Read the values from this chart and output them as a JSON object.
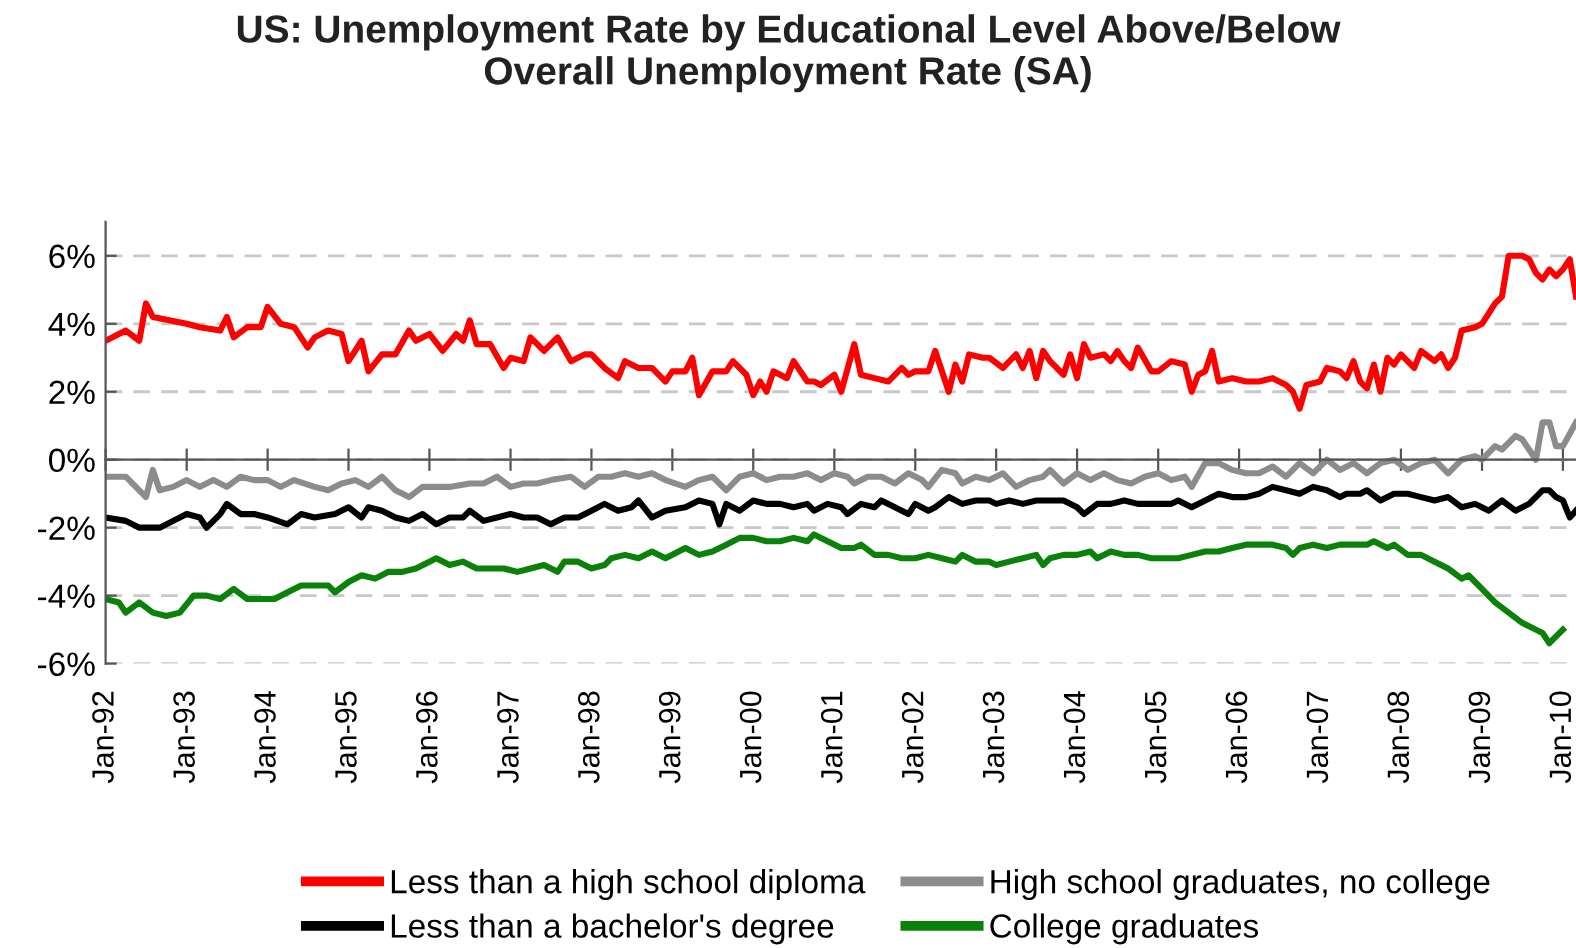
{
  "chart_data": {
    "type": "line",
    "title": "US: Unemployment Rate by Educational Level Above/Below\nOverall Unemployment Rate (SA)",
    "xlim": [
      "1992-01",
      "2010-03"
    ],
    "xticks": [
      {
        "value": "1992-01",
        "label": "Jan-92"
      },
      {
        "value": "1993-01",
        "label": "Jan-93"
      },
      {
        "value": "1994-01",
        "label": "Jan-94"
      },
      {
        "value": "1995-01",
        "label": "Jan-95"
      },
      {
        "value": "1996-01",
        "label": "Jan-96"
      },
      {
        "value": "1997-01",
        "label": "Jan-97"
      },
      {
        "value": "1998-01",
        "label": "Jan-98"
      },
      {
        "value": "1999-01",
        "label": "Jan-99"
      },
      {
        "value": "2000-01",
        "label": "Jan-00"
      },
      {
        "value": "2001-01",
        "label": "Jan-01"
      },
      {
        "value": "2002-01",
        "label": "Jan-02"
      },
      {
        "value": "2003-01",
        "label": "Jan-03"
      },
      {
        "value": "2004-01",
        "label": "Jan-04"
      },
      {
        "value": "2005-01",
        "label": "Jan-05"
      },
      {
        "value": "2006-01",
        "label": "Jan-06"
      },
      {
        "value": "2007-01",
        "label": "Jan-07"
      },
      {
        "value": "2008-01",
        "label": "Jan-08"
      },
      {
        "value": "2009-01",
        "label": "Jan-09"
      },
      {
        "value": "2010-01",
        "label": "Jan-10"
      }
    ],
    "ylim": [
      -6,
      7
    ],
    "yticks": [
      {
        "value": -6,
        "label": "-6%"
      },
      {
        "value": -4,
        "label": "-4%"
      },
      {
        "value": -2,
        "label": "-2%"
      },
      {
        "value": 0,
        "label": "0%"
      },
      {
        "value": 2,
        "label": "2%"
      },
      {
        "value": 4,
        "label": "4%"
      },
      {
        "value": 6,
        "label": "6%"
      }
    ],
    "grid": "y",
    "legend": "bottom",
    "marker": "none",
    "line_style": "solid",
    "series": [
      {
        "name": "Less than a high school diploma",
        "color": "#ff0000",
        "x": [
          "1992-01",
          "1992-04",
          "1992-06",
          "1992-07",
          "1992-08",
          "1993-01",
          "1993-03",
          "1993-06",
          "1993-07",
          "1993-08",
          "1993-10",
          "1993-12",
          "1994-01",
          "1994-03",
          "1994-05",
          "1994-07",
          "1994-08",
          "1994-10",
          "1994-12",
          "1995-01",
          "1995-03",
          "1995-04",
          "1995-06",
          "1995-08",
          "1995-10",
          "1995-11",
          "1996-01",
          "1996-03",
          "1996-05",
          "1996-06",
          "1996-07",
          "1996-08",
          "1996-10",
          "1996-12",
          "1997-01",
          "1997-03",
          "1997-04",
          "1997-06",
          "1997-08",
          "1997-10",
          "1997-12",
          "1998-01",
          "1998-03",
          "1998-05",
          "1998-06",
          "1998-08",
          "1998-10",
          "1998-12",
          "1999-01",
          "1999-03",
          "1999-04",
          "1999-05",
          "1999-07",
          "1999-09",
          "1999-10",
          "1999-12",
          "2000-01",
          "2000-02",
          "2000-03",
          "2000-04",
          "2000-06",
          "2000-07",
          "2000-09",
          "2000-10",
          "2000-11",
          "2001-01",
          "2001-02",
          "2001-04",
          "2001-05",
          "2001-07",
          "2001-09",
          "2001-11",
          "2001-12",
          "2002-01",
          "2002-03",
          "2002-04",
          "2002-06",
          "2002-07",
          "2002-08",
          "2002-09",
          "2002-11",
          "2002-12",
          "2003-02",
          "2003-04",
          "2003-05",
          "2003-06",
          "2003-07",
          "2003-08",
          "2003-09",
          "2003-11",
          "2003-12",
          "2004-01",
          "2004-02",
          "2004-03",
          "2004-05",
          "2004-06",
          "2004-07",
          "2004-08",
          "2004-09",
          "2004-10",
          "2004-12",
          "2005-01",
          "2005-03",
          "2005-05",
          "2005-06",
          "2005-07",
          "2005-08",
          "2005-09",
          "2005-10",
          "2005-12",
          "2006-02",
          "2006-04",
          "2006-06",
          "2006-08",
          "2006-09",
          "2006-10",
          "2006-11",
          "2007-01",
          "2007-02",
          "2007-04",
          "2007-05",
          "2007-06",
          "2007-07",
          "2007-08",
          "2007-09",
          "2007-10",
          "2007-11",
          "2007-12",
          "2008-01",
          "2008-03",
          "2008-04",
          "2008-06",
          "2008-07",
          "2008-08",
          "2008-09",
          "2008-10",
          "2008-12",
          "2009-01",
          "2009-03",
          "2009-04",
          "2009-05",
          "2009-07",
          "2009-08",
          "2009-09",
          "2009-10",
          "2009-11",
          "2009-12",
          "2010-01",
          "2010-02",
          "2010-03"
        ],
        "values": [
          3.5,
          3.8,
          3.5,
          4.6,
          4.2,
          4.0,
          3.9,
          3.8,
          4.2,
          3.6,
          3.9,
          3.9,
          4.5,
          4.0,
          3.9,
          3.3,
          3.6,
          3.8,
          3.7,
          2.9,
          3.5,
          2.6,
          3.1,
          3.1,
          3.8,
          3.5,
          3.7,
          3.2,
          3.7,
          3.5,
          4.1,
          3.4,
          3.4,
          2.7,
          3.0,
          2.9,
          3.6,
          3.2,
          3.6,
          2.9,
          3.1,
          3.1,
          2.7,
          2.4,
          2.9,
          2.7,
          2.7,
          2.3,
          2.6,
          2.6,
          3.0,
          1.9,
          2.6,
          2.6,
          2.9,
          2.5,
          1.9,
          2.3,
          2.0,
          2.6,
          2.4,
          2.9,
          2.3,
          2.3,
          2.2,
          2.5,
          2.0,
          3.4,
          2.5,
          2.4,
          2.3,
          2.7,
          2.5,
          2.6,
          2.6,
          3.2,
          2.0,
          2.8,
          2.3,
          3.1,
          3.0,
          3.0,
          2.7,
          3.1,
          2.7,
          3.2,
          2.4,
          3.2,
          2.9,
          2.5,
          3.1,
          2.4,
          3.4,
          3.0,
          3.1,
          2.9,
          3.2,
          2.9,
          2.7,
          3.3,
          2.6,
          2.6,
          2.9,
          2.8,
          2.0,
          2.5,
          2.6,
          3.2,
          2.3,
          2.4,
          2.3,
          2.3,
          2.4,
          2.2,
          2.0,
          1.5,
          2.2,
          2.3,
          2.7,
          2.6,
          2.4,
          2.9,
          2.3,
          2.1,
          2.8,
          2.0,
          3.0,
          2.8,
          3.1,
          2.7,
          3.2,
          2.9,
          3.1,
          2.7,
          3.0,
          3.8,
          3.9,
          4.0,
          4.6,
          4.8,
          6.0,
          6.0,
          5.9,
          5.5,
          5.3,
          5.6,
          5.4,
          5.6,
          5.9,
          4.8
        ]
      },
      {
        "name": "High school graduates, no college",
        "color": "#8c8c8c",
        "x": [
          "1992-01",
          "1992-04",
          "1992-07",
          "1992-08",
          "1992-09",
          "1992-11",
          "1993-01",
          "1993-03",
          "1993-05",
          "1993-07",
          "1993-09",
          "1993-11",
          "1994-01",
          "1994-03",
          "1994-05",
          "1994-08",
          "1994-10",
          "1994-12",
          "1995-02",
          "1995-04",
          "1995-06",
          "1995-08",
          "1995-10",
          "1995-12",
          "1996-02",
          "1996-04",
          "1996-07",
          "1996-09",
          "1996-11",
          "1997-01",
          "1997-03",
          "1997-05",
          "1997-07",
          "1997-10",
          "1997-12",
          "1998-02",
          "1998-04",
          "1998-06",
          "1998-08",
          "1998-10",
          "1998-12",
          "1999-03",
          "1999-05",
          "1999-07",
          "1999-09",
          "1999-11",
          "2000-01",
          "2000-03",
          "2000-05",
          "2000-07",
          "2000-09",
          "2000-11",
          "2001-01",
          "2001-03",
          "2001-04",
          "2001-06",
          "2001-08",
          "2001-10",
          "2001-12",
          "2002-02",
          "2002-03",
          "2002-05",
          "2002-07",
          "2002-08",
          "2002-10",
          "2002-12",
          "2003-02",
          "2003-04",
          "2003-06",
          "2003-08",
          "2003-09",
          "2003-11",
          "2004-01",
          "2004-03",
          "2004-05",
          "2004-07",
          "2004-09",
          "2004-11",
          "2005-01",
          "2005-03",
          "2005-05",
          "2005-06",
          "2005-08",
          "2005-10",
          "2005-12",
          "2006-02",
          "2006-04",
          "2006-06",
          "2006-08",
          "2006-10",
          "2006-12",
          "2007-02",
          "2007-04",
          "2007-06",
          "2007-08",
          "2007-10",
          "2007-12",
          "2008-02",
          "2008-04",
          "2008-06",
          "2008-08",
          "2008-10",
          "2008-12",
          "2009-01",
          "2009-03",
          "2009-04",
          "2009-06",
          "2009-07",
          "2009-08",
          "2009-09",
          "2009-10",
          "2009-11",
          "2009-12",
          "2010-01",
          "2010-03"
        ],
        "values": [
          -0.5,
          -0.5,
          -1.1,
          -0.3,
          -0.9,
          -0.8,
          -0.6,
          -0.8,
          -0.6,
          -0.8,
          -0.5,
          -0.6,
          -0.6,
          -0.8,
          -0.6,
          -0.8,
          -0.9,
          -0.7,
          -0.6,
          -0.8,
          -0.5,
          -0.9,
          -1.1,
          -0.8,
          -0.8,
          -0.8,
          -0.7,
          -0.7,
          -0.5,
          -0.8,
          -0.7,
          -0.7,
          -0.6,
          -0.5,
          -0.8,
          -0.5,
          -0.5,
          -0.4,
          -0.5,
          -0.4,
          -0.6,
          -0.8,
          -0.6,
          -0.5,
          -0.9,
          -0.5,
          -0.4,
          -0.6,
          -0.5,
          -0.5,
          -0.4,
          -0.6,
          -0.4,
          -0.5,
          -0.7,
          -0.5,
          -0.5,
          -0.7,
          -0.4,
          -0.6,
          -0.8,
          -0.3,
          -0.4,
          -0.7,
          -0.5,
          -0.6,
          -0.4,
          -0.8,
          -0.6,
          -0.5,
          -0.3,
          -0.7,
          -0.4,
          -0.6,
          -0.4,
          -0.6,
          -0.7,
          -0.5,
          -0.4,
          -0.6,
          -0.5,
          -0.8,
          -0.1,
          -0.1,
          -0.3,
          -0.4,
          -0.4,
          -0.2,
          -0.5,
          -0.1,
          -0.4,
          0.0,
          -0.3,
          -0.1,
          -0.4,
          -0.1,
          0.0,
          -0.3,
          -0.1,
          0.0,
          -0.4,
          0.0,
          0.1,
          0.0,
          0.4,
          0.3,
          0.7,
          0.6,
          0.3,
          0.0,
          1.1,
          1.1,
          0.4,
          0.4,
          1.1
        ]
      },
      {
        "name": "Less than a bachelor's degree",
        "color": "#000000",
        "x": [
          "1992-01",
          "1992-04",
          "1992-06",
          "1992-09",
          "1992-11",
          "1993-01",
          "1993-03",
          "1993-04",
          "1993-06",
          "1993-07",
          "1993-09",
          "1993-11",
          "1994-01",
          "1994-04",
          "1994-06",
          "1994-08",
          "1994-11",
          "1995-01",
          "1995-03",
          "1995-04",
          "1995-06",
          "1995-08",
          "1995-10",
          "1995-12",
          "1996-02",
          "1996-04",
          "1996-06",
          "1996-07",
          "1996-09",
          "1996-11",
          "1997-01",
          "1997-03",
          "1997-05",
          "1997-07",
          "1997-09",
          "1997-11",
          "1998-01",
          "1998-03",
          "1998-05",
          "1998-07",
          "1998-08",
          "1998-10",
          "1998-12",
          "1999-03",
          "1999-05",
          "1999-07",
          "1999-08",
          "1999-09",
          "1999-11",
          "2000-01",
          "2000-03",
          "2000-05",
          "2000-07",
          "2000-09",
          "2000-10",
          "2000-12",
          "2001-02",
          "2001-03",
          "2001-05",
          "2001-07",
          "2001-08",
          "2001-10",
          "2001-12",
          "2002-01",
          "2002-03",
          "2002-04",
          "2002-06",
          "2002-08",
          "2002-10",
          "2002-12",
          "2003-01",
          "2003-03",
          "2003-05",
          "2003-07",
          "2003-09",
          "2003-11",
          "2004-01",
          "2004-02",
          "2004-04",
          "2004-06",
          "2004-08",
          "2004-10",
          "2005-01",
          "2005-03",
          "2005-04",
          "2005-06",
          "2005-08",
          "2005-10",
          "2005-12",
          "2006-02",
          "2006-04",
          "2006-06",
          "2006-08",
          "2006-10",
          "2006-12",
          "2007-02",
          "2007-04",
          "2007-05",
          "2007-07",
          "2007-08",
          "2007-10",
          "2007-12",
          "2008-02",
          "2008-04",
          "2008-06",
          "2008-08",
          "2008-10",
          "2008-12",
          "2009-02",
          "2009-04",
          "2009-06",
          "2009-08",
          "2009-10",
          "2009-11",
          "2009-12",
          "2010-01",
          "2010-02",
          "2010-03"
        ],
        "values": [
          -1.7,
          -1.8,
          -2.0,
          -2.0,
          -1.8,
          -1.6,
          -1.7,
          -2.0,
          -1.6,
          -1.3,
          -1.6,
          -1.6,
          -1.7,
          -1.9,
          -1.6,
          -1.7,
          -1.6,
          -1.4,
          -1.7,
          -1.4,
          -1.5,
          -1.7,
          -1.8,
          -1.6,
          -1.9,
          -1.7,
          -1.7,
          -1.5,
          -1.8,
          -1.7,
          -1.6,
          -1.7,
          -1.7,
          -1.9,
          -1.7,
          -1.7,
          -1.5,
          -1.3,
          -1.5,
          -1.4,
          -1.2,
          -1.7,
          -1.5,
          -1.4,
          -1.2,
          -1.3,
          -1.9,
          -1.3,
          -1.5,
          -1.2,
          -1.3,
          -1.3,
          -1.4,
          -1.3,
          -1.5,
          -1.3,
          -1.4,
          -1.6,
          -1.3,
          -1.4,
          -1.2,
          -1.4,
          -1.6,
          -1.3,
          -1.5,
          -1.4,
          -1.1,
          -1.3,
          -1.2,
          -1.2,
          -1.3,
          -1.2,
          -1.3,
          -1.2,
          -1.2,
          -1.2,
          -1.4,
          -1.6,
          -1.3,
          -1.3,
          -1.2,
          -1.3,
          -1.3,
          -1.3,
          -1.2,
          -1.4,
          -1.2,
          -1.0,
          -1.1,
          -1.1,
          -1.0,
          -0.8,
          -0.9,
          -1.0,
          -0.8,
          -0.9,
          -1.1,
          -1.0,
          -1.0,
          -0.9,
          -1.2,
          -1.0,
          -1.0,
          -1.1,
          -1.2,
          -1.1,
          -1.4,
          -1.3,
          -1.5,
          -1.2,
          -1.5,
          -1.3,
          -0.9,
          -0.9,
          -1.1,
          -1.2,
          -1.7,
          -1.5
        ]
      },
      {
        "name": "College graduates",
        "color": "#0a820a",
        "x": [
          "1992-01",
          "1992-03",
          "1992-04",
          "1992-06",
          "1992-08",
          "1992-10",
          "1992-12",
          "1993-02",
          "1993-04",
          "1993-06",
          "1993-08",
          "1993-10",
          "1993-12",
          "1994-02",
          "1994-04",
          "1994-06",
          "1994-08",
          "1994-10",
          "1994-11",
          "1995-01",
          "1995-03",
          "1995-05",
          "1995-07",
          "1995-09",
          "1995-11",
          "1996-01",
          "1996-02",
          "1996-04",
          "1996-06",
          "1996-08",
          "1996-10",
          "1996-12",
          "1997-02",
          "1997-04",
          "1997-06",
          "1997-08",
          "1997-09",
          "1997-11",
          "1998-01",
          "1998-03",
          "1998-04",
          "1998-06",
          "1998-08",
          "1998-10",
          "1998-12",
          "1999-01",
          "1999-03",
          "1999-05",
          "1999-07",
          "1999-09",
          "1999-11",
          "2000-01",
          "2000-03",
          "2000-05",
          "2000-07",
          "2000-09",
          "2000-10",
          "2000-12",
          "2001-02",
          "2001-04",
          "2001-05",
          "2001-07",
          "2001-09",
          "2001-11",
          "2002-01",
          "2002-03",
          "2002-05",
          "2002-07",
          "2002-08",
          "2002-10",
          "2002-12",
          "2003-01",
          "2003-03",
          "2003-05",
          "2003-07",
          "2003-08",
          "2003-09",
          "2003-11",
          "2004-01",
          "2004-03",
          "2004-04",
          "2004-06",
          "2004-08",
          "2004-10",
          "2004-12",
          "2005-02",
          "2005-04",
          "2005-06",
          "2005-08",
          "2005-10",
          "2005-12",
          "2006-02",
          "2006-04",
          "2006-06",
          "2006-08",
          "2006-09",
          "2006-10",
          "2006-12",
          "2007-02",
          "2007-04",
          "2007-06",
          "2007-08",
          "2007-09",
          "2007-11",
          "2007-12",
          "2008-02",
          "2008-04",
          "2008-06",
          "2008-08",
          "2008-10",
          "2008-11",
          "2009-01",
          "2009-03",
          "2009-05",
          "2009-07",
          "2009-08",
          "2009-09",
          "2009-10",
          "2009-11",
          "2009-12",
          "2010-01"
        ],
        "values": [
          -4.1,
          -4.2,
          -4.5,
          -4.2,
          -4.5,
          -4.6,
          -4.5,
          -4.0,
          -4.0,
          -4.1,
          -3.8,
          -4.1,
          -4.1,
          -4.1,
          -3.9,
          -3.7,
          -3.7,
          -3.7,
          -3.9,
          -3.6,
          -3.4,
          -3.5,
          -3.3,
          -3.3,
          -3.2,
          -3.0,
          -2.9,
          -3.1,
          -3.0,
          -3.2,
          -3.2,
          -3.2,
          -3.3,
          -3.2,
          -3.1,
          -3.3,
          -3.0,
          -3.0,
          -3.2,
          -3.1,
          -2.9,
          -2.8,
          -2.9,
          -2.7,
          -2.9,
          -2.8,
          -2.6,
          -2.8,
          -2.7,
          -2.5,
          -2.3,
          -2.3,
          -2.4,
          -2.4,
          -2.3,
          -2.4,
          -2.2,
          -2.4,
          -2.6,
          -2.6,
          -2.5,
          -2.8,
          -2.8,
          -2.9,
          -2.9,
          -2.8,
          -2.9,
          -3.0,
          -2.8,
          -3.0,
          -3.0,
          -3.1,
          -3.0,
          -2.9,
          -2.8,
          -3.1,
          -2.9,
          -2.8,
          -2.8,
          -2.7,
          -2.9,
          -2.7,
          -2.8,
          -2.8,
          -2.9,
          -2.9,
          -2.9,
          -2.8,
          -2.7,
          -2.7,
          -2.6,
          -2.5,
          -2.5,
          -2.5,
          -2.6,
          -2.8,
          -2.6,
          -2.5,
          -2.6,
          -2.5,
          -2.5,
          -2.5,
          -2.4,
          -2.6,
          -2.5,
          -2.8,
          -2.8,
          -3.0,
          -3.2,
          -3.5,
          -3.4,
          -3.8,
          -4.2,
          -4.5,
          -4.8,
          -4.9,
          -5.0,
          -5.1,
          -5.4,
          -5.2,
          -5.0
        ]
      }
    ]
  }
}
